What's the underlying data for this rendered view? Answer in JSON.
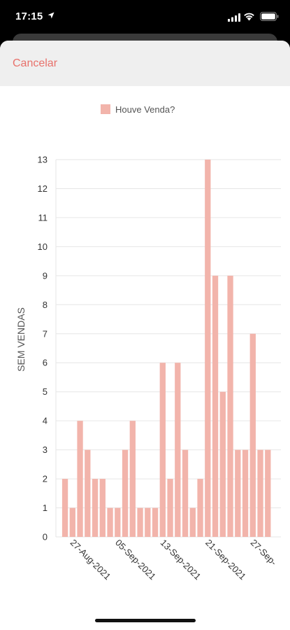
{
  "status_bar": {
    "time": "17:15"
  },
  "header": {
    "cancel_label": "Cancelar"
  },
  "colors": {
    "bar": "#f2b4ab",
    "cancel": "#e8716b",
    "axis_text": "#333333",
    "grid": "#e6e6e6"
  },
  "chart_data": {
    "type": "bar",
    "legend": "Houve Venda?",
    "legend_position": "top-center",
    "ylabel": "SEM VENDAS",
    "xlabel": "",
    "ylim": [
      0,
      13
    ],
    "y_ticks": [
      0,
      1,
      2,
      3,
      4,
      5,
      6,
      7,
      8,
      9,
      10,
      11,
      12,
      13
    ],
    "grid": true,
    "x_tick_labels": [
      "27-Aug-2021",
      "05-Sep-2021",
      "13-Sep-2021",
      "21-Sep-2021",
      "27-Sep-"
    ],
    "values": [
      2,
      1,
      4,
      3,
      2,
      2,
      1,
      1,
      3,
      4,
      1,
      1,
      1,
      6,
      2,
      6,
      3,
      1,
      2,
      13,
      9,
      5,
      9,
      3,
      3,
      7,
      3,
      3
    ]
  }
}
